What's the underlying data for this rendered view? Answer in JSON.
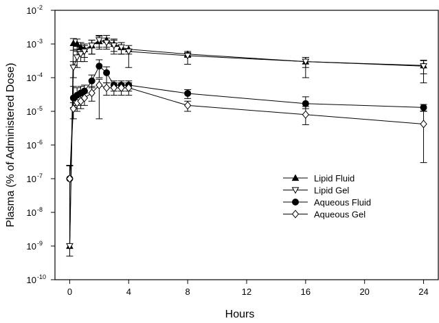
{
  "chart_data": {
    "type": "scatter",
    "title": "",
    "xlabel": "Hours",
    "ylabel": "Plasma (% of Administered Dose)",
    "xlim": [
      -1,
      25
    ],
    "x_ticks": [
      0,
      4,
      8,
      12,
      16,
      20,
      24
    ],
    "x_tick_labels": [
      "0",
      "4",
      "8",
      "12",
      "16",
      "20",
      "24"
    ],
    "y_scale": "log",
    "ylim": [
      1e-10,
      0.01
    ],
    "y_tick_base": "10",
    "y_tick_exponents": [
      "-10",
      "-9",
      "-8",
      "-7",
      "-6",
      "-5",
      "-4",
      "-3",
      "-2"
    ],
    "grid": false,
    "legend_position": "center-right",
    "series": [
      {
        "name": "Lipid Fluid",
        "marker": "triangle-up",
        "fill": "#000000",
        "x": [
          0,
          0.25,
          0.5,
          0.75,
          1,
          1.5,
          2,
          2.5,
          3,
          3.5,
          4,
          8,
          16,
          24
        ],
        "y": [
          1e-09,
          0.00105,
          0.001,
          0.0008,
          0.0007,
          0.0009,
          0.0012,
          0.0013,
          0.001,
          0.0008,
          0.0007,
          0.0005,
          0.0003,
          0.00023
        ],
        "err_lo": [
          5e-10,
          0.0004,
          0.0004,
          0.0003,
          0.0003,
          0.0004,
          0.0005,
          0.0005,
          0.0004,
          0.0003,
          0.0002,
          0.0001,
          0.0001,
          0.0001
        ],
        "err_hi": [
          2.4e-07,
          0.0004,
          0.0004,
          0.0003,
          0.0003,
          0.0004,
          0.0005,
          0.0005,
          0.0004,
          0.0003,
          0.0002,
          0.0001,
          0.0001,
          0.0001
        ]
      },
      {
        "name": "Lipid Gel",
        "marker": "triangle-down",
        "fill": "#ffffff",
        "x": [
          0,
          0.25,
          0.5,
          0.75,
          1,
          1.5,
          2,
          2.5,
          3,
          3.5,
          4,
          8,
          16,
          24
        ],
        "y": [
          1e-09,
          0.0002,
          0.0004,
          0.0005,
          0.0006,
          0.0009,
          0.0013,
          0.0011,
          0.0009,
          0.0008,
          0.0006,
          0.00045,
          0.0003,
          0.00022
        ],
        "err_lo": [
          0,
          0.0001,
          0.0002,
          0.0002,
          0.0003,
          0.0004,
          0.0005,
          0.0004,
          0.0004,
          0.0003,
          0.0004,
          0.0002,
          0.0002,
          0.00015
        ],
        "err_hi": [
          0,
          0.0001,
          0.0003,
          0.0003,
          0.0003,
          0.0004,
          0.0005,
          0.0004,
          0.0004,
          0.0003,
          0.0001,
          0.0001,
          0.0001,
          0.0001
        ]
      },
      {
        "name": "Aqueous  Fluid",
        "marker": "circle",
        "fill": "#000000",
        "x": [
          0,
          0.25,
          0.5,
          0.75,
          1,
          1.5,
          2,
          2.5,
          3,
          3.5,
          4,
          8,
          16,
          24
        ],
        "y": [
          1e-07,
          2.5e-05,
          3e-05,
          3.5e-05,
          4e-05,
          8e-05,
          0.00022,
          0.00014,
          6e-05,
          6e-05,
          6e-05,
          3.4e-05,
          1.7e-05,
          1.3e-05
        ],
        "err_lo": [
          0,
          1.2e-05,
          1.5e-05,
          1.5e-05,
          1.5e-05,
          3e-05,
          0.00012,
          7e-05,
          2e-05,
          2e-05,
          2e-05,
          1e-05,
          5e-06,
          3e-06
        ],
        "err_hi": [
          1.5e-07,
          3e-05,
          2e-05,
          2e-05,
          2e-05,
          4e-05,
          0.00012,
          7e-05,
          2e-05,
          2e-05,
          2e-05,
          1e-05,
          1e-05,
          3e-06
        ]
      },
      {
        "name": "Aqueous Gel",
        "marker": "diamond",
        "fill": "#ffffff",
        "x": [
          0,
          0.25,
          0.5,
          0.75,
          1,
          1.5,
          2,
          2.5,
          3,
          3.5,
          4,
          8,
          16,
          24
        ],
        "y": [
          1e-07,
          1.2e-05,
          1.8e-05,
          2e-05,
          2.5e-05,
          3.5e-05,
          6e-05,
          5e-05,
          5e-05,
          5e-05,
          5e-05,
          1.5e-05,
          8e-06,
          4.2e-06
        ],
        "err_lo": [
          0,
          6e-06,
          8e-06,
          8e-06,
          1e-05,
          1.5e-05,
          5.4e-05,
          2e-05,
          2e-05,
          2e-05,
          2e-05,
          5e-06,
          4e-06,
          3.9e-06
        ],
        "err_hi": [
          0,
          6e-06,
          1e-05,
          1e-05,
          1e-05,
          2e-05,
          3e-05,
          2e-05,
          2e-05,
          2e-05,
          2e-05,
          5e-06,
          6e-06,
          6e-06
        ]
      }
    ]
  }
}
